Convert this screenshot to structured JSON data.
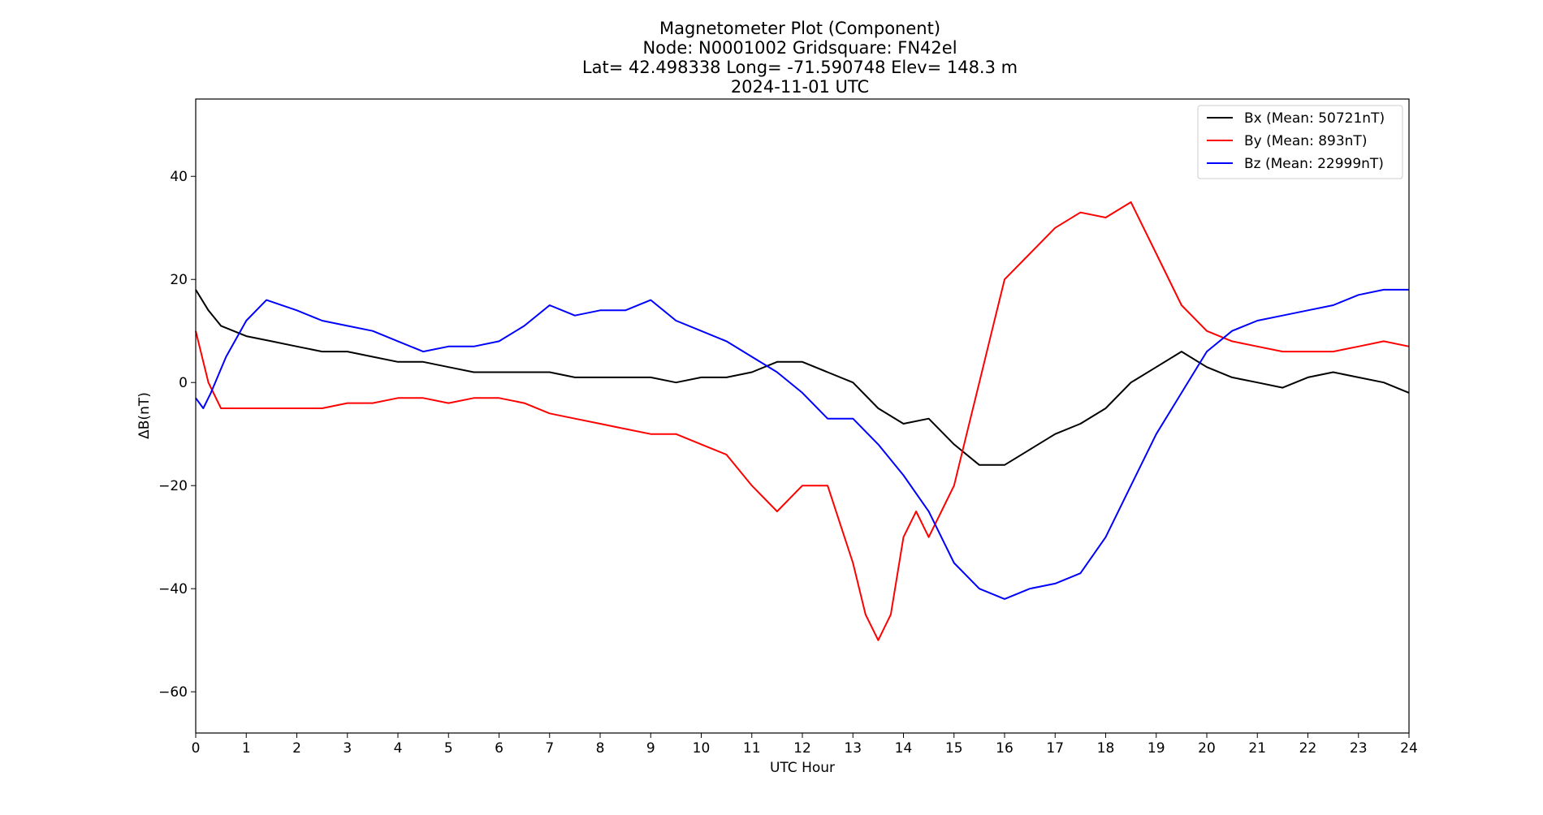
{
  "chart_data": {
    "type": "line",
    "title_lines": [
      "Magnetometer Plot (Component)",
      "Node:  N0001002     Gridsquare:  FN42el",
      "Lat= 42.498338    Long= -71.590748    Elev= 148.3 m",
      "2024-11-01  UTC"
    ],
    "xlabel": "UTC Hour",
    "ylabel": "ΔB(nT)",
    "xlim": [
      0,
      24
    ],
    "ylim": [
      -68,
      55
    ],
    "x_ticks": [
      0,
      1,
      2,
      3,
      4,
      5,
      6,
      7,
      8,
      9,
      10,
      11,
      12,
      13,
      14,
      15,
      16,
      17,
      18,
      19,
      20,
      21,
      22,
      23,
      24
    ],
    "x_tick_labels": [
      "0",
      "1",
      "2",
      "3",
      "4",
      "5",
      "6",
      "7",
      "8",
      "9",
      "10",
      "11",
      "12",
      "13",
      "14",
      "15",
      "16",
      "17",
      "18",
      "19",
      "20",
      "21",
      "22",
      "23",
      "24"
    ],
    "y_ticks": [
      -60,
      -40,
      -20,
      0,
      20,
      40
    ],
    "y_tick_labels": [
      "−60",
      "−40",
      "−20",
      "0",
      "20",
      "40"
    ],
    "grid": false,
    "legend_position": "top-right",
    "series": [
      {
        "name": "Bx (Mean: 50721nT)",
        "color": "#000000",
        "x": [
          0,
          0.25,
          0.5,
          1,
          1.5,
          2,
          2.5,
          3,
          3.5,
          4,
          4.5,
          5,
          5.5,
          6,
          6.5,
          7,
          7.5,
          8,
          8.5,
          9,
          9.5,
          10,
          10.5,
          11,
          11.5,
          12,
          12.5,
          13,
          13.5,
          14,
          14.5,
          15,
          15.5,
          16,
          16.5,
          17,
          17.5,
          18,
          18.5,
          19,
          19.5,
          20,
          20.5,
          21,
          21.5,
          22,
          22.5,
          23,
          23.5,
          24
        ],
        "y": [
          18,
          14,
          11,
          9,
          8,
          7,
          6,
          6,
          5,
          4,
          4,
          3,
          2,
          2,
          2,
          2,
          1,
          1,
          1,
          1,
          0,
          1,
          1,
          2,
          4,
          4,
          2,
          0,
          -5,
          -8,
          -7,
          -12,
          -16,
          -16,
          -13,
          -10,
          -8,
          -5,
          0,
          3,
          6,
          3,
          1,
          0,
          -1,
          1,
          2,
          1,
          0,
          -2
        ]
      },
      {
        "name": "By (Mean: 893nT)",
        "color": "#ff0000",
        "x": [
          0,
          0.25,
          0.5,
          1,
          1.5,
          2,
          2.5,
          3,
          3.5,
          4,
          4.5,
          5,
          5.5,
          6,
          6.5,
          7,
          7.5,
          8,
          8.5,
          9,
          9.5,
          10,
          10.5,
          11,
          11.5,
          12,
          12.5,
          13,
          13.25,
          13.5,
          13.75,
          14,
          14.25,
          14.5,
          14.75,
          15,
          15.25,
          15.5,
          15.75,
          16,
          16.5,
          17,
          17.5,
          18,
          18.5,
          19,
          19.5,
          20,
          20.5,
          21,
          21.5,
          22,
          22.5,
          23,
          23.5,
          24
        ],
        "y": [
          10,
          0,
          -5,
          -5,
          -5,
          -5,
          -5,
          -4,
          -4,
          -3,
          -3,
          -4,
          -3,
          -3,
          -4,
          -6,
          -7,
          -8,
          -9,
          -10,
          -10,
          -12,
          -14,
          -20,
          -25,
          -20,
          -20,
          -35,
          -45,
          -50,
          -45,
          -30,
          -25,
          -30,
          -25,
          -20,
          -10,
          0,
          10,
          20,
          25,
          30,
          33,
          32,
          35,
          25,
          15,
          10,
          8,
          7,
          6,
          6,
          6,
          7,
          8,
          7
        ]
      },
      {
        "name": "Bz (Mean: 22999nT)",
        "color": "#0000ff",
        "x": [
          0,
          0.15,
          0.3,
          0.6,
          1,
          1.4,
          2,
          2.5,
          3,
          3.5,
          4,
          4.5,
          5,
          5.5,
          6,
          6.5,
          7,
          7.5,
          8,
          8.5,
          9,
          9.5,
          10,
          10.5,
          11,
          11.5,
          12,
          12.5,
          13,
          13.5,
          14,
          14.5,
          15,
          15.5,
          16,
          16.5,
          17,
          17.5,
          18,
          18.5,
          19,
          19.5,
          20,
          20.5,
          21,
          21.5,
          22,
          22.5,
          23,
          23.5,
          24
        ],
        "y": [
          -3,
          -5,
          -2,
          5,
          12,
          16,
          14,
          12,
          11,
          10,
          8,
          6,
          7,
          7,
          8,
          11,
          15,
          13,
          14,
          14,
          16,
          12,
          10,
          8,
          5,
          2,
          -2,
          -7,
          -7,
          -12,
          -18,
          -25,
          -35,
          -40,
          -42,
          -40,
          -39,
          -37,
          -30,
          -20,
          -10,
          -2,
          6,
          10,
          12,
          13,
          14,
          15,
          17,
          18,
          18
        ]
      }
    ]
  }
}
